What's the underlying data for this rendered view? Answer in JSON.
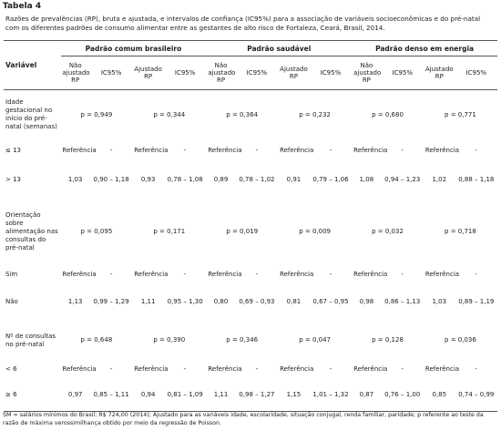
{
  "title": "Tabela 4",
  "caption": "Razões de prevalências (RP), bruta e ajustada, e intervalos de confiança (IC95%) para a associação de variáveis socioeconômicas e do pré-natal com os diferentes padrões de consumo alimentar entre as gestantes de alto risco de Fortaleza, Ceará, Brasil, 2014.",
  "table": {
    "variable_header": "Variável",
    "groups": [
      "Padrão comum brasileiro",
      "Padrão saudável",
      "Padrão denso em energia"
    ],
    "subheaders": [
      "Não ajustado RP",
      "IC95%",
      "Ajustado RP",
      "IC95%"
    ],
    "rows": [
      {
        "label": "Idade gestacional no início do pré-natal (semanas)",
        "p": [
          "p = 0,949",
          "p = 0,344",
          "p = 0,364",
          "p = 0,232",
          "p = 0,680",
          "p = 0,771"
        ]
      },
      {
        "label": "≤ 13",
        "cells": [
          "Referência",
          "-",
          "Referência",
          "-",
          "Referência",
          "-",
          "Referência",
          "-",
          "Referência",
          "-",
          "Referência",
          "-"
        ]
      },
      {
        "label": "> 13",
        "cells": [
          "1,03",
          "0,90 – 1,18",
          "0,93",
          "0,78 – 1,08",
          "0,89",
          "0,78 – 1,02",
          "0,91",
          "0,79 – 1,06",
          "1,08",
          "0,94 – 1,23",
          "1,02",
          "0,88 – 1,18"
        ]
      },
      {
        "label": "Orientação sobre alimentação nas consultas do pré-natal",
        "p": [
          "p = 0,095",
          "p = 0,171",
          "p = 0,019",
          "p = 0,009",
          "p = 0,032",
          "p = 0,718"
        ]
      },
      {
        "label": "Sim",
        "cells": [
          "Referência",
          "-",
          "Referência",
          "-",
          "Referência",
          "-",
          "Referência",
          "-",
          "Referência",
          "-",
          "Referência",
          "-"
        ]
      },
      {
        "label": "Não",
        "cells": [
          "1,13",
          "0,99 – 1,29",
          "1,11",
          "0,95 – 1,30",
          "0,80",
          "0,69 – 0,93",
          "0,81",
          "0,67 – 0,95",
          "0,98",
          "0,86 – 1,13",
          "1,03",
          "0,89 – 1,19"
        ]
      },
      {
        "label": "Nº de consultas no pré-natal",
        "p": [
          "p = 0,648",
          "p = 0,390",
          "p = 0,346",
          "p = 0,047",
          "p = 0,128",
          "p = 0,036"
        ]
      },
      {
        "label": "< 6",
        "cells": [
          "Referência",
          "-",
          "Referência",
          "-",
          "Referência",
          "-",
          "Referência",
          "-",
          "Referência",
          "-",
          "Referência",
          "-"
        ]
      },
      {
        "label": "≥ 6",
        "cells": [
          "0,97",
          "0,85 – 1,11",
          "0,94",
          "0,81 – 1,09",
          "1,11",
          "0,98 – 1,27",
          "1,15",
          "1,01 – 1,32",
          "0,87",
          "0,76 – 1,00",
          "0,85",
          "0,74 – 0,99"
        ]
      }
    ]
  },
  "footnote": "SM = salários mínimos do Brasil: R$ 724,00 (2014); Ajustado para as variáveis idade, escolaridade, situação conjugal, renda familiar, paridade; p referente ao teste da razão de máxima verossimilhança obtido por meio da regressão de Poisson."
}
